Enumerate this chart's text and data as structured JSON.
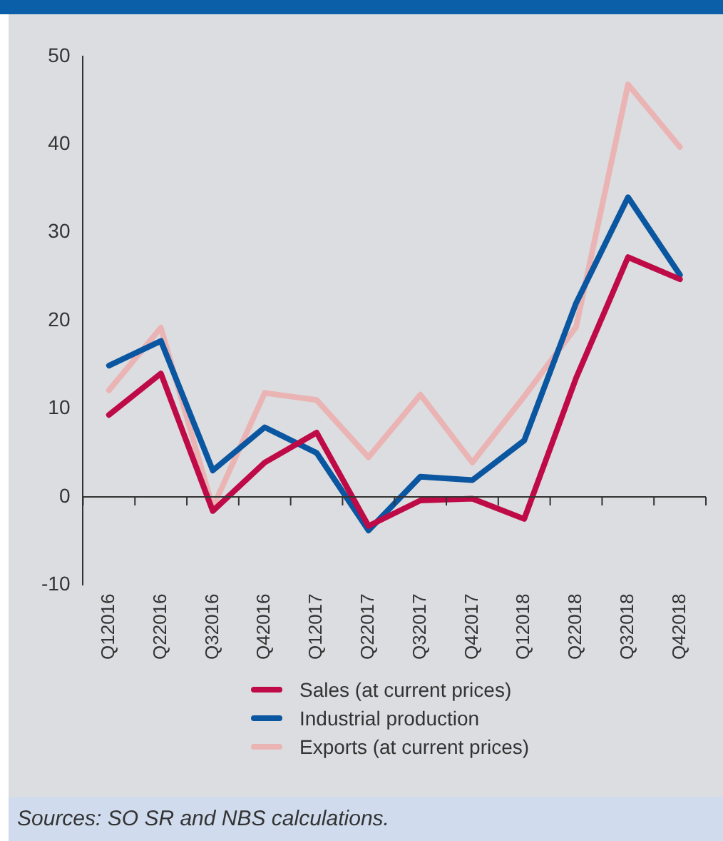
{
  "chart_data": {
    "type": "line",
    "categories": [
      "Q12016",
      "Q22016",
      "Q32016",
      "Q42016",
      "Q12017",
      "Q22017",
      "Q32017",
      "Q42017",
      "Q12018",
      "Q22018",
      "Q32018",
      "Q42018"
    ],
    "series": [
      {
        "name": "Sales (at current prices)",
        "color": "#be0a46",
        "values": [
          9.3,
          14.0,
          -1.6,
          3.9,
          7.3,
          -3.3,
          -0.4,
          -0.2,
          -2.5,
          13.5,
          27.2,
          24.7
        ]
      },
      {
        "name": "Industrial production",
        "color": "#0a56a0",
        "values": [
          14.9,
          17.7,
          3.0,
          7.9,
          5.0,
          -3.8,
          2.3,
          1.9,
          6.4,
          22.0,
          34.0,
          25.2
        ]
      },
      {
        "name": "Exports (at current prices)",
        "color": "#ebb4b4",
        "values": [
          12.1,
          19.2,
          -1.2,
          11.8,
          11.0,
          4.5,
          11.6,
          3.9,
          11.4,
          19.3,
          46.8,
          39.7
        ]
      }
    ],
    "ylim": [
      -10,
      50
    ],
    "yticks": [
      -10,
      0,
      10,
      20,
      30,
      40,
      50
    ],
    "legend": "bottom",
    "marker": "none",
    "line_style": "solid",
    "annotations": [
      "Sources: SO SR and NBS calculations."
    ]
  }
}
